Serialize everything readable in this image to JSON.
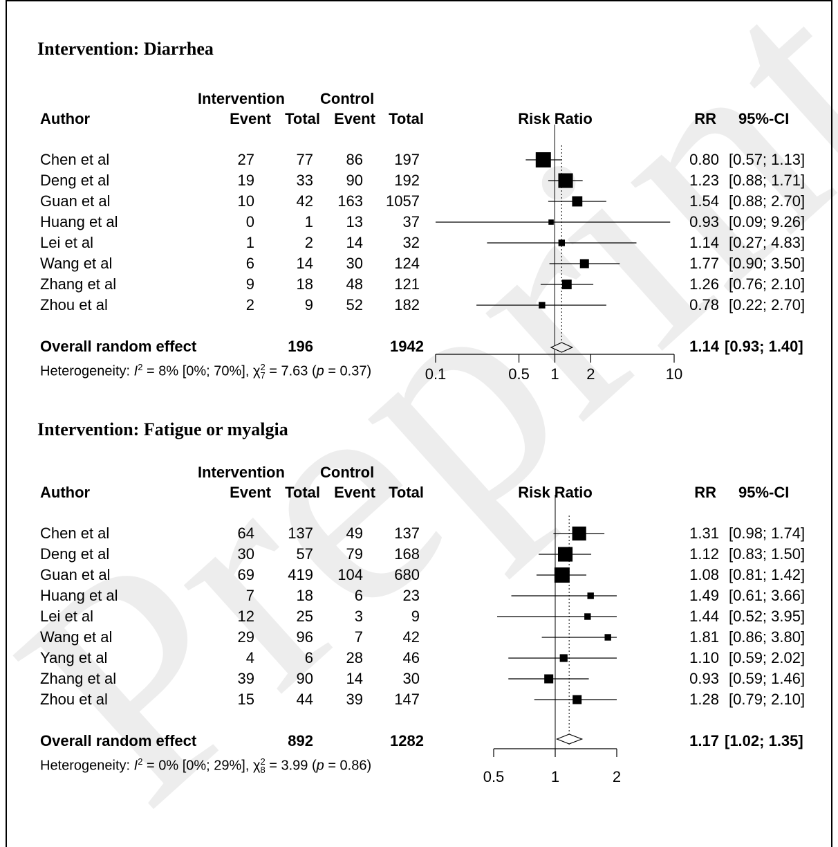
{
  "chart_data": [
    {
      "type": "forest",
      "title": "Intervention: Diarrhea",
      "header": {
        "group_intervention": "Intervention",
        "group_control": "Control",
        "author": "Author",
        "event": "Event",
        "total": "Total",
        "plot_label": "Risk Ratio",
        "rr": "RR",
        "ci": "95%-CI"
      },
      "studies": [
        {
          "author": "Chen et al",
          "int_event": "27",
          "int_total": "77",
          "ctrl_event": "86",
          "ctrl_total": "197",
          "rr": 0.8,
          "lo": 0.57,
          "hi": 1.13,
          "rr_text": "0.80",
          "ci_text": "[0.57; 1.13]",
          "weight": 1.0
        },
        {
          "author": "Deng et al",
          "int_event": "19",
          "int_total": "33",
          "ctrl_event": "90",
          "ctrl_total": "192",
          "rr": 1.23,
          "lo": 0.88,
          "hi": 1.71,
          "rr_text": "1.23",
          "ci_text": "[0.88; 1.71]",
          "weight": 0.95
        },
        {
          "author": "Guan et al",
          "int_event": "10",
          "int_total": "42",
          "ctrl_event": "163",
          "ctrl_total": "1057",
          "rr": 1.54,
          "lo": 0.88,
          "hi": 2.7,
          "rr_text": "1.54",
          "ci_text": "[0.88; 2.70]",
          "weight": 0.6
        },
        {
          "author": "Huang et al",
          "int_event": "0",
          "int_total": "1",
          "ctrl_event": "13",
          "ctrl_total": "37",
          "rr": 0.93,
          "lo": 0.09,
          "hi": 9.26,
          "rr_text": "0.93",
          "ci_text": "[0.09; 9.26]",
          "weight": 0.2
        },
        {
          "author": "Lei et al",
          "int_event": "1",
          "int_total": "2",
          "ctrl_event": "14",
          "ctrl_total": "32",
          "rr": 1.14,
          "lo": 0.27,
          "hi": 4.83,
          "rr_text": "1.14",
          "ci_text": "[0.27; 4.83]",
          "weight": 0.3
        },
        {
          "author": "Wang et al",
          "int_event": "6",
          "int_total": "14",
          "ctrl_event": "30",
          "ctrl_total": "124",
          "rr": 1.77,
          "lo": 0.9,
          "hi": 3.5,
          "rr_text": "1.77",
          "ci_text": "[0.90; 3.50]",
          "weight": 0.5
        },
        {
          "author": "Zhang et al",
          "int_event": "9",
          "int_total": "18",
          "ctrl_event": "48",
          "ctrl_total": "121",
          "rr": 1.26,
          "lo": 0.76,
          "hi": 2.1,
          "rr_text": "1.26",
          "ci_text": "[0.76; 2.10]",
          "weight": 0.55
        },
        {
          "author": "Zhou et al",
          "int_event": "2",
          "int_total": "9",
          "ctrl_event": "52",
          "ctrl_total": "182",
          "rr": 0.78,
          "lo": 0.22,
          "hi": 2.7,
          "rr_text": "0.78",
          "ci_text": "[0.22; 2.70]",
          "weight": 0.3
        }
      ],
      "overall": {
        "label": "Overall random effect",
        "int_total": "196",
        "ctrl_total": "1942",
        "rr": 1.14,
        "lo": 0.93,
        "hi": 1.4,
        "rr_text": "1.14",
        "ci_text": "[0.93; 1.40]"
      },
      "heterogeneity": {
        "prefix": "Heterogeneity: ",
        "I": "I",
        "isup": "2",
        "ival": " = 8% [0%; 70%], ",
        "chi": "χ",
        "chisup": "2",
        "chisub": "7",
        "chival": " = 7.63 (",
        "p": "p",
        "pval": " = 0.37)"
      },
      "xscale": "log",
      "xlim": [
        0.1,
        10
      ],
      "ticks": [
        0.1,
        0.5,
        1,
        2,
        10
      ],
      "tick_labels": [
        "0.1",
        "0.5",
        "1",
        "2",
        "10"
      ]
    },
    {
      "type": "forest",
      "title": "Intervention: Fatigue or myalgia",
      "header": {
        "group_intervention": "Intervention",
        "group_control": "Control",
        "author": "Author",
        "event": "Event",
        "total": "Total",
        "plot_label": "Risk Ratio",
        "rr": "RR",
        "ci": "95%-CI"
      },
      "studies": [
        {
          "author": "Chen et al",
          "int_event": "64",
          "int_total": "137",
          "ctrl_event": "49",
          "ctrl_total": "137",
          "rr": 1.31,
          "lo": 0.98,
          "hi": 1.74,
          "rr_text": "1.31",
          "ci_text": "[0.98; 1.74]",
          "weight": 0.9
        },
        {
          "author": "Deng et al",
          "int_event": "30",
          "int_total": "57",
          "ctrl_event": "79",
          "ctrl_total": "168",
          "rr": 1.12,
          "lo": 0.83,
          "hi": 1.5,
          "rr_text": "1.12",
          "ci_text": "[0.83; 1.50]",
          "weight": 0.95
        },
        {
          "author": "Guan et al",
          "int_event": "69",
          "int_total": "419",
          "ctrl_event": "104",
          "ctrl_total": "680",
          "rr": 1.08,
          "lo": 0.81,
          "hi": 1.42,
          "rr_text": "1.08",
          "ci_text": "[0.81; 1.42]",
          "weight": 1.0
        },
        {
          "author": "Huang et al",
          "int_event": "7",
          "int_total": "18",
          "ctrl_event": "6",
          "ctrl_total": "23",
          "rr": 1.49,
          "lo": 0.61,
          "hi": 3.66,
          "rr_text": "1.49",
          "ci_text": "[0.61; 3.66]",
          "weight": 0.3
        },
        {
          "author": "Lei et al",
          "int_event": "12",
          "int_total": "25",
          "ctrl_event": "3",
          "ctrl_total": "9",
          "rr": 1.44,
          "lo": 0.52,
          "hi": 3.95,
          "rr_text": "1.44",
          "ci_text": "[0.52; 3.95]",
          "weight": 0.3
        },
        {
          "author": "Wang et al",
          "int_event": "29",
          "int_total": "96",
          "ctrl_event": "7",
          "ctrl_total": "42",
          "rr": 1.81,
          "lo": 0.86,
          "hi": 3.8,
          "rr_text": "1.81",
          "ci_text": "[0.86; 3.80]",
          "weight": 0.3
        },
        {
          "author": "Yang et al",
          "int_event": "4",
          "int_total": "6",
          "ctrl_event": "28",
          "ctrl_total": "46",
          "rr": 1.1,
          "lo": 0.59,
          "hi": 2.02,
          "rr_text": "1.10",
          "ci_text": "[0.59; 2.02]",
          "weight": 0.4
        },
        {
          "author": "Zhang et al",
          "int_event": "39",
          "int_total": "90",
          "ctrl_event": "14",
          "ctrl_total": "30",
          "rr": 0.93,
          "lo": 0.59,
          "hi": 1.46,
          "rr_text": "0.93",
          "ci_text": "[0.59; 1.46]",
          "weight": 0.5
        },
        {
          "author": "Zhou et al",
          "int_event": "15",
          "int_total": "44",
          "ctrl_event": "39",
          "ctrl_total": "147",
          "rr": 1.28,
          "lo": 0.79,
          "hi": 2.1,
          "rr_text": "1.28",
          "ci_text": "[0.79; 2.10]",
          "weight": 0.5
        }
      ],
      "overall": {
        "label": "Overall random effect",
        "int_total": "892",
        "ctrl_total": "1282",
        "rr": 1.17,
        "lo": 1.02,
        "hi": 1.35,
        "rr_text": "1.17",
        "ci_text": "[1.02; 1.35]"
      },
      "heterogeneity": {
        "prefix": "Heterogeneity: ",
        "I": "I",
        "isup": "2",
        "ival": " = 0% [0%; 29%], ",
        "chi": "χ",
        "chisup": "2",
        "chisub": "8",
        "chival": " = 3.99 (",
        "p": "p",
        "pval": " = 0.86)"
      },
      "xscale": "log",
      "xlim": [
        0.5,
        2
      ],
      "ticks": [
        0.5,
        1,
        2
      ],
      "tick_labels": [
        "0.5",
        "1",
        "2"
      ]
    }
  ],
  "watermark": "Preprint"
}
